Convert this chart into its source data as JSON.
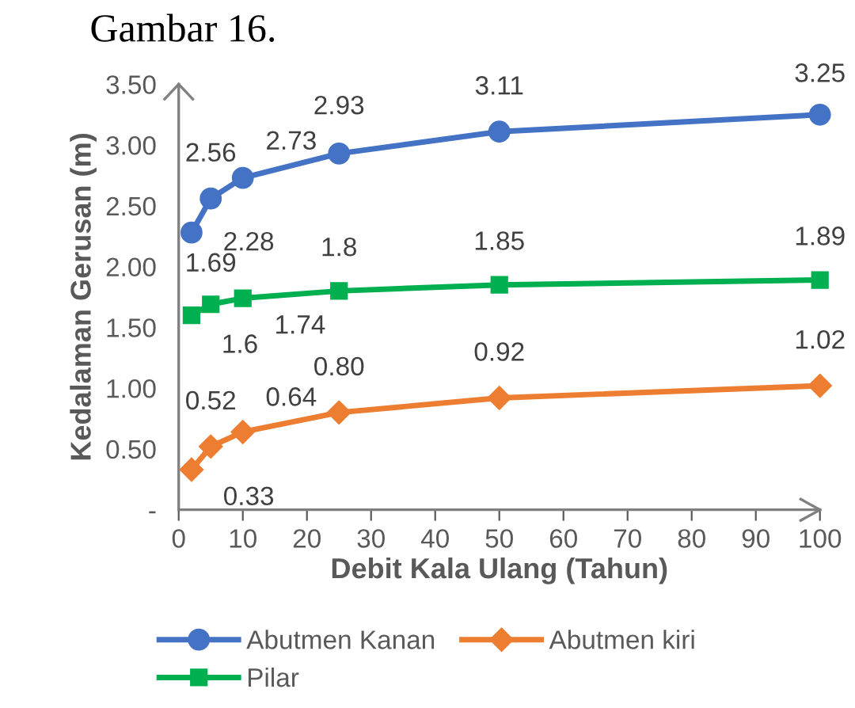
{
  "chart_data": {
    "type": "line",
    "title": "Gambar 16.",
    "xlabel": "Debit Kala Ulang (Tahun)",
    "ylabel": "Kedalaman Gerusan (m)",
    "x": [
      2,
      5,
      10,
      25,
      50,
      100
    ],
    "series": [
      {
        "name": "Abutmen Kanan",
        "color": "#4472c4",
        "marker": "circle",
        "values": [
          2.28,
          2.56,
          2.73,
          2.93,
          3.11,
          3.25
        ],
        "value_labels": [
          "2.28",
          "2.56",
          "2.73",
          "2.93",
          "3.11",
          "3.25"
        ]
      },
      {
        "name": "Abutmen kiri",
        "color": "#ed7d31",
        "marker": "diamond",
        "values": [
          0.33,
          0.52,
          0.64,
          0.8,
          0.92,
          1.02
        ],
        "value_labels": [
          "0.33",
          "0.52",
          "0.64",
          "0.80",
          "0.92",
          "1.02"
        ]
      },
      {
        "name": "Pilar",
        "color": "#00b050",
        "marker": "square",
        "values": [
          1.6,
          1.69,
          1.74,
          1.8,
          1.85,
          1.89
        ],
        "value_labels": [
          "1.6",
          "1.69",
          "1.74",
          "1.8",
          "1.85",
          "1.89"
        ]
      }
    ],
    "xlim": [
      0,
      100
    ],
    "xticks": [
      0,
      10,
      20,
      30,
      40,
      50,
      60,
      70,
      80,
      90,
      100
    ],
    "ylim": [
      0,
      3.5
    ],
    "yticks": [
      {
        "value": 0,
        "label": "-"
      },
      {
        "value": 0.5,
        "label": "0.50"
      },
      {
        "value": 1,
        "label": "1.00"
      },
      {
        "value": 1.5,
        "label": "1.50"
      },
      {
        "value": 2,
        "label": "2.00"
      },
      {
        "value": 2.5,
        "label": "2.50"
      },
      {
        "value": 3,
        "label": "3.00"
      },
      {
        "value": 3.5,
        "label": "3.50"
      }
    ],
    "grid": false,
    "legend": "bottom",
    "line_style": "solid"
  }
}
